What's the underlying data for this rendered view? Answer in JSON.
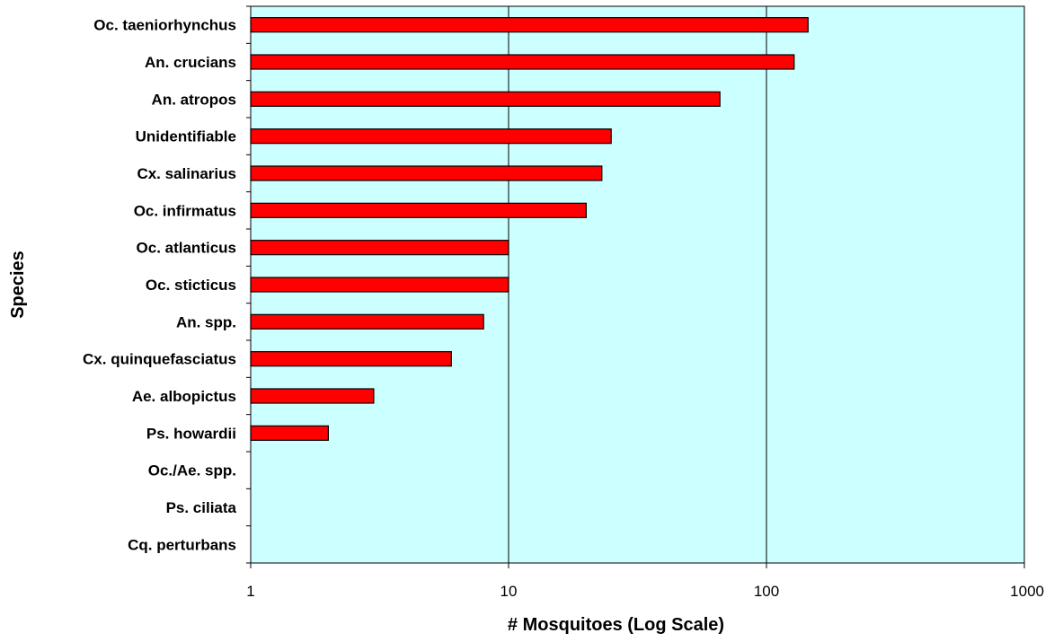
{
  "chart_data": {
    "type": "bar",
    "orientation": "horizontal",
    "title": "",
    "xlabel": "# Mosquitoes (Log Scale)",
    "ylabel": "Species",
    "x_scale": "log",
    "xlim": [
      1,
      1000
    ],
    "x_ticks": [
      "1",
      "10",
      "100",
      "1000"
    ],
    "grid": "vertical major gridlines",
    "legend": "none",
    "categories": [
      "Oc. taeniorhynchus",
      "An. crucians",
      "An. atropos",
      "Unidentifiable",
      "Cx. salinarius",
      "Oc. infirmatus",
      "Oc. atlanticus",
      "Oc. sticticus",
      "An. spp.",
      "Cx. quinquefasciatus",
      "Ae. albopictus",
      "Ps. howardii",
      "Oc./Ae. spp.",
      "Ps. ciliata",
      "Cq. perturbans"
    ],
    "values": [
      145,
      128,
      66,
      25,
      23,
      20,
      10,
      10,
      8,
      6,
      3,
      2,
      1,
      1,
      1
    ],
    "colors": {
      "bar_fill": "#ff0000",
      "bar_stroke": "#000000",
      "plot_bg": "#ccffff",
      "gridline": "#000000"
    }
  }
}
